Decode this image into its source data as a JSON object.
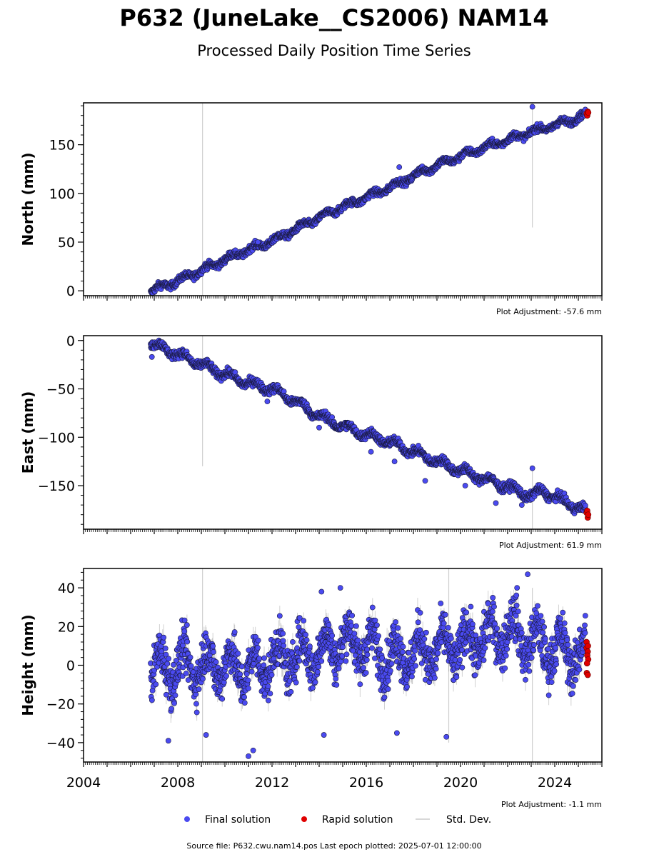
{
  "chart_data": {
    "type": "scatter",
    "title": "P632 (JuneLake__CS2006) NAM14",
    "subtitle": "Processed Daily Position Time Series",
    "source_line": "Source file: P632.cwu.nam14.pos  Last epoch plotted: 2025-07-01 12:00:00",
    "xlim": [
      2004.0,
      2026.0
    ],
    "x_ticks": [
      2004,
      2008,
      2012,
      2016,
      2020,
      2024
    ],
    "x_tick_labels": [
      "2004",
      "2008",
      "2012",
      "2016",
      "2020",
      "2024"
    ],
    "grid": false,
    "legend_placement": "bottom",
    "legend": [
      {
        "label": "Final solution",
        "color": "#4a4af0"
      },
      {
        "label": "Rapid solution",
        "color": "#e00000"
      },
      {
        "label": "Std. Dev.",
        "color": "#cccccc"
      }
    ],
    "colors": {
      "final": "#4a4af0",
      "rapid": "#e00000",
      "std_dev": "#bdbdbd",
      "outline": "#1a1a40"
    },
    "panels": [
      {
        "ylabel": "North (mm)",
        "ylim": [
          -5,
          193
        ],
        "y_ticks": [
          0,
          50,
          100,
          150
        ],
        "y_tick_labels": [
          "0",
          "50",
          "100",
          "150"
        ],
        "adjustment": "Plot Adjustment: -57.6 mm",
        "final_trend": [
          [
            2006.85,
            0
          ],
          [
            2008.0,
            10
          ],
          [
            2009.0,
            21
          ],
          [
            2010.0,
            32
          ],
          [
            2011.0,
            42
          ],
          [
            2012.0,
            51
          ],
          [
            2013.0,
            63
          ],
          [
            2014.0,
            75
          ],
          [
            2015.0,
            86
          ],
          [
            2016.0,
            96
          ],
          [
            2017.0,
            106
          ],
          [
            2018.0,
            118
          ],
          [
            2019.0,
            129
          ],
          [
            2020.0,
            138
          ],
          [
            2021.0,
            147
          ],
          [
            2022.0,
            155
          ],
          [
            2023.0,
            163
          ],
          [
            2024.0,
            170
          ],
          [
            2025.3,
            180
          ]
        ],
        "scatter_amp": 2.5,
        "noise": 1.8,
        "outliers": [
          [
            2023.05,
            189
          ],
          [
            2017.4,
            127
          ],
          [
            2011.4,
            50
          ]
        ],
        "spikes": [
          [
            2009.05,
            -5,
            193
          ],
          [
            2023.05,
            65,
            190
          ]
        ],
        "rapid": [
          [
            2025.35,
            182
          ],
          [
            2025.4,
            184
          ],
          [
            2025.38,
            180
          ],
          [
            2025.42,
            183
          ]
        ]
      },
      {
        "ylabel": "East (mm)",
        "ylim": [
          -195,
          5
        ],
        "y_ticks": [
          0,
          -50,
          -100,
          -150
        ],
        "y_tick_labels": [
          "0",
          "−50",
          "−100",
          "−150"
        ],
        "adjustment": "Plot Adjustment: 61.9 mm",
        "final_trend": [
          [
            2006.85,
            -3
          ],
          [
            2008.0,
            -14
          ],
          [
            2009.0,
            -25
          ],
          [
            2010.0,
            -35
          ],
          [
            2011.0,
            -44
          ],
          [
            2012.0,
            -50
          ],
          [
            2013.0,
            -63
          ],
          [
            2014.0,
            -78
          ],
          [
            2015.0,
            -89
          ],
          [
            2016.0,
            -97
          ],
          [
            2017.0,
            -105
          ],
          [
            2018.0,
            -115
          ],
          [
            2019.0,
            -125
          ],
          [
            2020.0,
            -134
          ],
          [
            2021.0,
            -143
          ],
          [
            2022.0,
            -151
          ],
          [
            2023.0,
            -161
          ],
          [
            2023.5,
            -155
          ],
          [
            2024.0,
            -162
          ],
          [
            2025.3,
            -176
          ]
        ],
        "scatter_amp": 3.5,
        "noise": 2.2,
        "outliers": [
          [
            2023.05,
            -132
          ],
          [
            2011.8,
            -63
          ],
          [
            2016.2,
            -115
          ],
          [
            2017.2,
            -125
          ],
          [
            2018.5,
            -145
          ],
          [
            2020.2,
            -150
          ],
          [
            2021.5,
            -168
          ],
          [
            2006.9,
            -17
          ],
          [
            2014.0,
            -90
          ],
          [
            2022.6,
            -170
          ]
        ],
        "spikes": [
          [
            2009.05,
            -130,
            5
          ],
          [
            2023.05,
            -195,
            -132
          ]
        ],
        "rapid": [
          [
            2025.35,
            -178
          ],
          [
            2025.4,
            -183
          ],
          [
            2025.38,
            -176
          ],
          [
            2025.42,
            -180
          ]
        ]
      },
      {
        "ylabel": "Height (mm)",
        "ylim": [
          -50,
          50
        ],
        "y_ticks": [
          40,
          20,
          0,
          -20,
          -40
        ],
        "y_tick_labels": [
          "40",
          "20",
          "0",
          "−20",
          "−40"
        ],
        "adjustment": "Plot Adjustment: -1.1 mm",
        "final_trend": [
          [
            2006.85,
            -2
          ],
          [
            2008.0,
            -1
          ],
          [
            2009.0,
            0
          ],
          [
            2010.0,
            0
          ],
          [
            2011.0,
            -3
          ],
          [
            2012.0,
            2
          ],
          [
            2013.0,
            5
          ],
          [
            2014.0,
            7
          ],
          [
            2015.0,
            12
          ],
          [
            2016.0,
            10
          ],
          [
            2017.0,
            4
          ],
          [
            2018.0,
            6
          ],
          [
            2019.0,
            8
          ],
          [
            2020.0,
            10
          ],
          [
            2021.0,
            14
          ],
          [
            2022.0,
            18
          ],
          [
            2023.0,
            12
          ],
          [
            2024.0,
            8
          ],
          [
            2025.3,
            5
          ]
        ],
        "scatter_amp": 9,
        "noise": 6,
        "outliers": [
          [
            2014.1,
            38
          ],
          [
            2014.9,
            40
          ],
          [
            2022.85,
            47
          ],
          [
            2011.0,
            -47
          ],
          [
            2011.2,
            -44
          ],
          [
            2007.6,
            -39
          ],
          [
            2009.2,
            -36
          ],
          [
            2014.2,
            -36
          ],
          [
            2019.4,
            -37
          ],
          [
            2017.3,
            -35
          ],
          [
            2022.4,
            40
          ]
        ],
        "spikes": [
          [
            2009.05,
            -50,
            50
          ],
          [
            2019.5,
            -40,
            50
          ],
          [
            2023.05,
            -50,
            40
          ]
        ],
        "rapid": [
          [
            2025.35,
            12
          ],
          [
            2025.35,
            9
          ],
          [
            2025.4,
            7
          ],
          [
            2025.38,
            5
          ],
          [
            2025.42,
            3
          ],
          [
            2025.36,
            -4
          ],
          [
            2025.4,
            -5
          ],
          [
            2025.37,
            1
          ],
          [
            2025.41,
            10
          ]
        ]
      }
    ]
  }
}
